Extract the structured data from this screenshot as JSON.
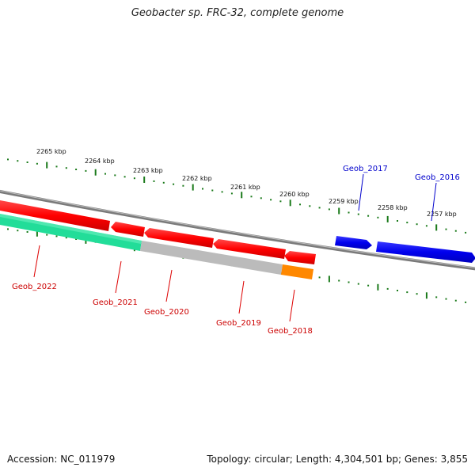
{
  "header": {
    "title": "Geobacter sp. FRC-32, complete genome"
  },
  "footer": {
    "accession": "Accession: NC_011979",
    "summary": "Topology: circular; Length: 4,304,501 bp; Genes: 3,855"
  },
  "kbp_labels": [
    "2265 kbp",
    "2264 kbp",
    "2263 kbp",
    "2262 kbp",
    "2261 kbp",
    "2260 kbp",
    "2259 kbp",
    "2258 kbp",
    "2257 kbp"
  ],
  "genes": [
    {
      "name": "Geob_2022",
      "strand": "minus",
      "color": "#d40000"
    },
    {
      "name": "Geob_2021",
      "strand": "minus",
      "color": "#d40000"
    },
    {
      "name": "Geob_2020",
      "strand": "minus",
      "color": "#d40000"
    },
    {
      "name": "Geob_2019",
      "strand": "minus",
      "color": "#d40000"
    },
    {
      "name": "Geob_2018",
      "strand": "minus",
      "color": "#d40000"
    },
    {
      "name": "Geob_2017",
      "strand": "plus",
      "color": "#0000cc"
    },
    {
      "name": "Geob_2016",
      "strand": "plus",
      "color": "#0000cc"
    }
  ],
  "colors": {
    "backbone": "#7a7a7a",
    "forward_gene": "#0000ee",
    "reverse_gene": "#ee0000",
    "cog_green": "#22dd99",
    "cog_gray": "#bbbbbb",
    "cog_orange": "#ff8800",
    "tick": "#1a7a1a"
  }
}
